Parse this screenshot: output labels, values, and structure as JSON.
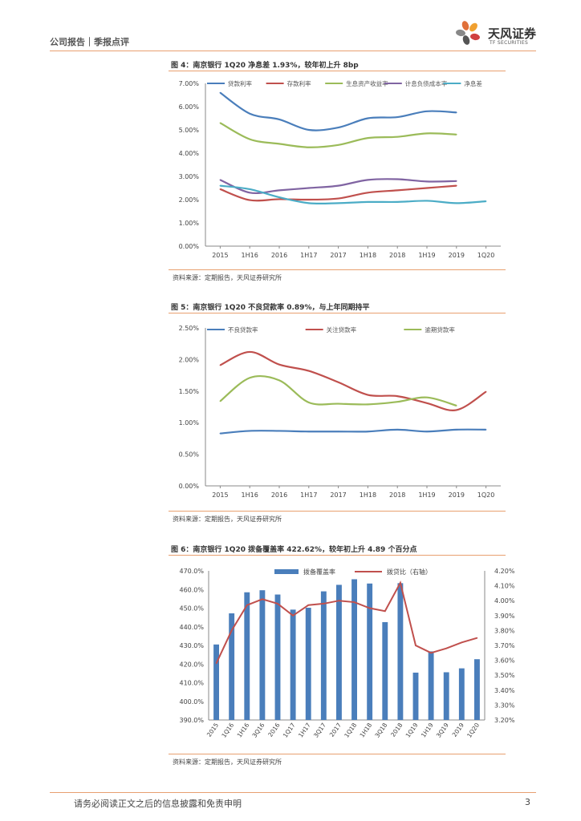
{
  "header": {
    "section": "公司报告｜季报点评",
    "brand": "天风证券",
    "brand_en": "TF SECURITIES"
  },
  "footer": {
    "disclaimer": "请务必阅读正文之后的信息披露和免责申明",
    "page": "3"
  },
  "colors": {
    "rule": "#e8a070",
    "blue": "#4a7ebb",
    "red": "#c0504d",
    "green": "#9bbb59",
    "purple": "#8064a2",
    "cyan": "#4bacc6",
    "bar": "#4a7ebb"
  },
  "chart_data": [
    {
      "type": "line",
      "title": "图 4：南京银行 1Q20 净息差 1.93%，较年初上升 8bp",
      "source": "资料来源：定期报告，天风证券研究所",
      "categories": [
        "2015",
        "1H16",
        "2016",
        "1H17",
        "2017",
        "1H18",
        "2018",
        "1H19",
        "2019",
        "1Q20"
      ],
      "ylim": [
        0,
        0.07
      ],
      "yticks": [
        "0.00%",
        "1.00%",
        "2.00%",
        "3.00%",
        "4.00%",
        "5.00%",
        "6.00%",
        "7.00%"
      ],
      "series": [
        {
          "name": "贷款利率",
          "color": "#4a7ebb",
          "values": [
            6.6,
            5.7,
            5.45,
            5.0,
            5.1,
            5.5,
            5.55,
            5.8,
            5.75,
            null
          ]
        },
        {
          "name": "存款利率",
          "color": "#c0504d",
          "values": [
            2.45,
            1.98,
            2.02,
            2.0,
            2.05,
            2.3,
            2.4,
            2.5,
            2.6,
            null
          ]
        },
        {
          "name": "生息资产收益率",
          "color": "#9bbb59",
          "values": [
            5.3,
            4.6,
            4.4,
            4.25,
            4.35,
            4.65,
            4.7,
            4.85,
            4.8,
            null
          ]
        },
        {
          "name": "计息负债成本率",
          "color": "#8064a2",
          "values": [
            2.85,
            2.3,
            2.4,
            2.5,
            2.6,
            2.85,
            2.88,
            2.78,
            2.8,
            null
          ]
        },
        {
          "name": "净息差",
          "color": "#4bacc6",
          "values": [
            2.6,
            2.45,
            2.1,
            1.85,
            1.85,
            1.9,
            1.9,
            1.95,
            1.85,
            1.93
          ]
        }
      ]
    },
    {
      "type": "line",
      "title": "图 5：南京银行 1Q20 不良贷款率 0.89%，与上年同期持平",
      "source": "资料来源：定期报告，天风证券研究所",
      "categories": [
        "2015",
        "1H16",
        "2016",
        "1H17",
        "2017",
        "1H18",
        "2018",
        "1H19",
        "2019",
        "1Q20"
      ],
      "ylim": [
        0,
        0.025
      ],
      "yticks": [
        "0.00%",
        "0.50%",
        "1.00%",
        "1.50%",
        "2.00%",
        "2.50%"
      ],
      "series": [
        {
          "name": "不良贷款率",
          "color": "#4a7ebb",
          "values": [
            0.83,
            0.87,
            0.87,
            0.86,
            0.86,
            0.86,
            0.89,
            0.86,
            0.89,
            0.89
          ]
        },
        {
          "name": "关注贷款率",
          "color": "#c0504d",
          "values": [
            1.91,
            2.12,
            1.92,
            1.82,
            1.64,
            1.44,
            1.42,
            1.31,
            1.2,
            1.49
          ]
        },
        {
          "name": "逾期贷款率",
          "color": "#9bbb59",
          "values": [
            1.34,
            1.71,
            1.67,
            1.32,
            1.3,
            1.29,
            1.33,
            1.4,
            1.27,
            null
          ]
        }
      ]
    },
    {
      "type": "bar+line",
      "title": "图 6：南京银行 1Q20 拨备覆盖率 422.62%，较年初上升 4.89 个百分点",
      "source": "资料来源：定期报告，天风证券研究所",
      "categories": [
        "2015",
        "1Q16",
        "1H16",
        "3Q16",
        "2016",
        "1Q17",
        "1H17",
        "3Q17",
        "2017",
        "1Q18",
        "1H18",
        "3Q18",
        "2018",
        "1Q19",
        "1H19",
        "3Q19",
        "2019",
        "1Q20"
      ],
      "left_axis": {
        "ylim": [
          390,
          470
        ],
        "ticks": [
          "390.0%",
          "400.0%",
          "410.0%",
          "420.0%",
          "430.0%",
          "440.0%",
          "450.0%",
          "460.0%",
          "470.0%"
        ]
      },
      "right_axis": {
        "ylim": [
          3.2,
          4.2
        ],
        "ticks": [
          "3.20%",
          "3.30%",
          "3.40%",
          "3.50%",
          "3.60%",
          "3.70%",
          "3.80%",
          "3.90%",
          "4.00%",
          "4.10%",
          "4.20%"
        ]
      },
      "series": [
        {
          "name": "拨备覆盖率",
          "kind": "bar",
          "axis": "left",
          "color": "#4a7ebb",
          "values": [
            430.5,
            447.2,
            458.5,
            459.6,
            457.3,
            449.2,
            450.2,
            459.0,
            462.5,
            465.5,
            463.2,
            442.5,
            463.4,
            415.4,
            426.8,
            415.6,
            417.7,
            422.6
          ]
        },
        {
          "name": "拨贷比（右轴）",
          "kind": "line",
          "axis": "right",
          "color": "#c0504d",
          "values": [
            3.58,
            3.8,
            3.97,
            4.01,
            3.98,
            3.9,
            3.97,
            3.98,
            4.0,
            3.99,
            3.95,
            3.93,
            4.12,
            3.7,
            3.65,
            3.68,
            3.72,
            3.75
          ]
        }
      ]
    }
  ]
}
